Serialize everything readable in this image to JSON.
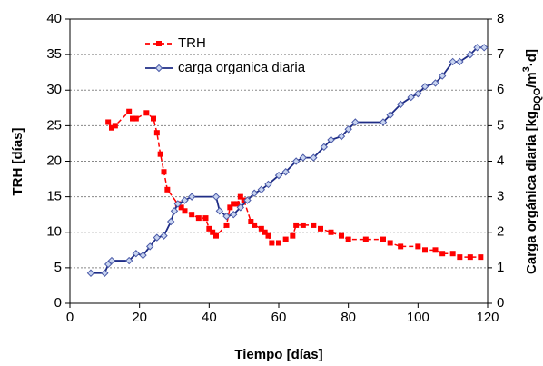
{
  "chart_data": {
    "type": "line",
    "xlabel": "Tiempo [días]",
    "ylabel": "TRH [días]",
    "y2label": [
      "Carga orgánica diaria  [kg",
      "DQO",
      "/m",
      "3",
      "·d]"
    ],
    "xlim": [
      0,
      120
    ],
    "xticks": [
      0,
      20,
      40,
      60,
      80,
      100,
      120
    ],
    "ylim": [
      0,
      40
    ],
    "yticks": [
      0,
      5,
      10,
      15,
      20,
      25,
      30,
      35,
      40
    ],
    "y2lim": [
      0,
      8
    ],
    "y2ticks": [
      0,
      1,
      2,
      3,
      4,
      5,
      6,
      7,
      8
    ],
    "grid": true,
    "series": [
      {
        "name": "TRH",
        "color": "#ff0000",
        "x": [
          11,
          12,
          13,
          17,
          18,
          19,
          22,
          24,
          25,
          26,
          27,
          28,
          31,
          32,
          33,
          35,
          37,
          39,
          40,
          41,
          42,
          45,
          46,
          47,
          48,
          49,
          50,
          52,
          53,
          55,
          56,
          57,
          58,
          60,
          62,
          64,
          65,
          67,
          70,
          72,
          75,
          78,
          80,
          85,
          90,
          92,
          95,
          100,
          102,
          105,
          107,
          110,
          112,
          115,
          118
        ],
        "values": [
          25.5,
          24.7,
          25,
          27,
          26,
          26,
          26.8,
          26,
          24,
          21,
          18.5,
          16,
          14,
          13.5,
          13,
          12.5,
          12,
          12,
          10.5,
          10,
          9.5,
          11,
          13.5,
          14,
          14,
          15,
          14.5,
          11.5,
          11,
          10.5,
          10,
          9.5,
          8.5,
          8.5,
          9,
          9.5,
          11,
          11,
          11,
          10.5,
          10,
          9.5,
          9,
          9,
          9,
          8.5,
          8,
          8,
          7.5,
          7.5,
          7,
          7,
          6.5,
          6.5,
          6.5
        ]
      },
      {
        "name": "carga organica diaria",
        "color": "#1f2d86",
        "axis": "y2",
        "x": [
          6,
          10,
          11,
          12,
          17,
          19,
          21,
          23,
          25,
          27,
          29,
          30,
          31,
          33,
          35,
          42,
          43,
          45,
          47,
          49,
          51,
          53,
          55,
          57,
          60,
          62,
          65,
          67,
          70,
          73,
          75,
          78,
          80,
          82,
          90,
          92,
          95,
          98,
          100,
          102,
          105,
          107,
          110,
          112,
          115,
          117,
          119
        ],
        "values": [
          0.85,
          0.85,
          1.1,
          1.2,
          1.2,
          1.4,
          1.35,
          1.6,
          1.85,
          1.9,
          2.3,
          2.6,
          2.8,
          2.9,
          3.0,
          3.0,
          2.6,
          2.45,
          2.5,
          2.7,
          2.9,
          3.1,
          3.2,
          3.35,
          3.6,
          3.7,
          4.0,
          4.1,
          4.1,
          4.4,
          4.6,
          4.7,
          4.9,
          5.1,
          5.1,
          5.3,
          5.6,
          5.8,
          5.9,
          6.1,
          6.2,
          6.4,
          6.8,
          6.8,
          7.0,
          7.2,
          7.2
        ]
      }
    ]
  }
}
